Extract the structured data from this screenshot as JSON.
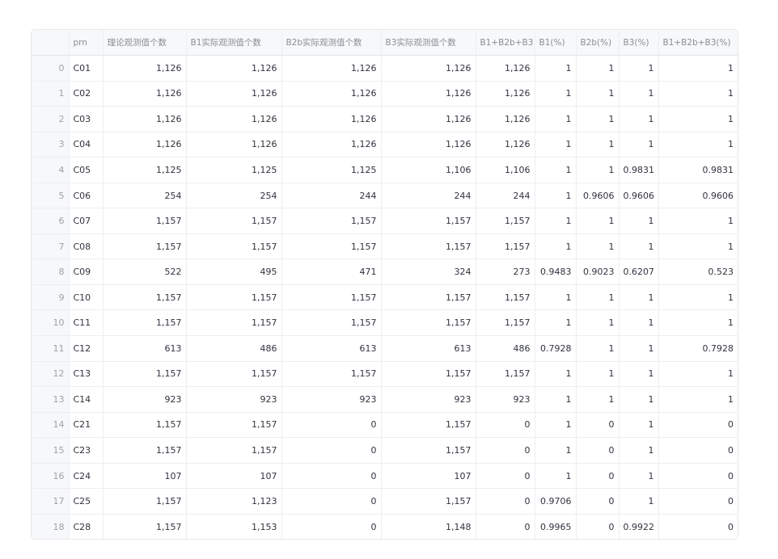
{
  "table": {
    "columns": [
      "",
      "prn",
      "理论观测值个数",
      "B1实际观测值个数",
      "B2b实际观测值个数",
      "B3实际观测值个数",
      "B1+B2b+B3",
      "B1(%)",
      "B2b(%)",
      "B3(%)",
      "B1+B2b+B3(%)"
    ],
    "rows": [
      [
        "0",
        "C01",
        "1,126",
        "1,126",
        "1,126",
        "1,126",
        "1,126",
        "1",
        "1",
        "1",
        "1"
      ],
      [
        "1",
        "C02",
        "1,126",
        "1,126",
        "1,126",
        "1,126",
        "1,126",
        "1",
        "1",
        "1",
        "1"
      ],
      [
        "2",
        "C03",
        "1,126",
        "1,126",
        "1,126",
        "1,126",
        "1,126",
        "1",
        "1",
        "1",
        "1"
      ],
      [
        "3",
        "C04",
        "1,126",
        "1,126",
        "1,126",
        "1,126",
        "1,126",
        "1",
        "1",
        "1",
        "1"
      ],
      [
        "4",
        "C05",
        "1,125",
        "1,125",
        "1,125",
        "1,106",
        "1,106",
        "1",
        "1",
        "0.9831",
        "0.9831"
      ],
      [
        "5",
        "C06",
        "254",
        "254",
        "244",
        "244",
        "244",
        "1",
        "0.9606",
        "0.9606",
        "0.9606"
      ],
      [
        "6",
        "C07",
        "1,157",
        "1,157",
        "1,157",
        "1,157",
        "1,157",
        "1",
        "1",
        "1",
        "1"
      ],
      [
        "7",
        "C08",
        "1,157",
        "1,157",
        "1,157",
        "1,157",
        "1,157",
        "1",
        "1",
        "1",
        "1"
      ],
      [
        "8",
        "C09",
        "522",
        "495",
        "471",
        "324",
        "273",
        "0.9483",
        "0.9023",
        "0.6207",
        "0.523"
      ],
      [
        "9",
        "C10",
        "1,157",
        "1,157",
        "1,157",
        "1,157",
        "1,157",
        "1",
        "1",
        "1",
        "1"
      ],
      [
        "10",
        "C11",
        "1,157",
        "1,157",
        "1,157",
        "1,157",
        "1,157",
        "1",
        "1",
        "1",
        "1"
      ],
      [
        "11",
        "C12",
        "613",
        "486",
        "613",
        "613",
        "486",
        "0.7928",
        "1",
        "1",
        "0.7928"
      ],
      [
        "12",
        "C13",
        "1,157",
        "1,157",
        "1,157",
        "1,157",
        "1,157",
        "1",
        "1",
        "1",
        "1"
      ],
      [
        "13",
        "C14",
        "923",
        "923",
        "923",
        "923",
        "923",
        "1",
        "1",
        "1",
        "1"
      ],
      [
        "14",
        "C21",
        "1,157",
        "1,157",
        "0",
        "1,157",
        "0",
        "1",
        "0",
        "1",
        "0"
      ],
      [
        "15",
        "C23",
        "1,157",
        "1,157",
        "0",
        "1,157",
        "0",
        "1",
        "0",
        "1",
        "0"
      ],
      [
        "16",
        "C24",
        "107",
        "107",
        "0",
        "107",
        "0",
        "1",
        "0",
        "1",
        "0"
      ],
      [
        "17",
        "C25",
        "1,157",
        "1,123",
        "0",
        "1,157",
        "0",
        "0.9706",
        "0",
        "1",
        "0"
      ],
      [
        "18",
        "C28",
        "1,157",
        "1,153",
        "0",
        "1,148",
        "0",
        "0.9965",
        "0",
        "0.9922",
        "0"
      ]
    ]
  }
}
